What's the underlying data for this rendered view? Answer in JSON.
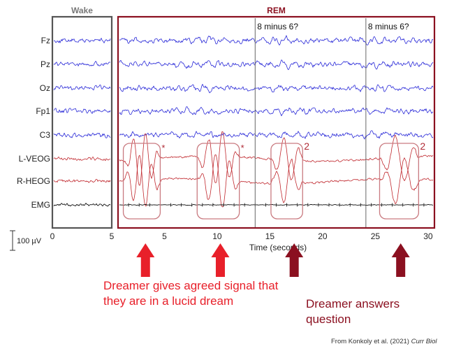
{
  "chart_data": {
    "type": "line",
    "panels": [
      {
        "label": "Wake",
        "xlim": [
          0,
          5
        ],
        "tick_labels": [
          "0",
          "5"
        ]
      },
      {
        "label": "REM",
        "xlim": [
          0,
          30
        ],
        "tick_labels": [
          "5",
          "10",
          "15",
          "20",
          "25",
          "30"
        ]
      }
    ],
    "xlabel": "Time (seconds)",
    "series": [
      {
        "name": "Fz",
        "color": "#2a2ad8"
      },
      {
        "name": "Pz",
        "color": "#2a2ad8"
      },
      {
        "name": "Oz",
        "color": "#2a2ad8"
      },
      {
        "name": "Fp1",
        "color": "#2a2ad8"
      },
      {
        "name": "C3",
        "color": "#2a2ad8"
      },
      {
        "name": "L-VEOG",
        "color": "#c0282e"
      },
      {
        "name": "R-HEOG",
        "color": "#c0282e"
      },
      {
        "name": "EMG",
        "color": "#111111"
      }
    ],
    "scale_bar_label": "100 µV",
    "question_events": [
      {
        "x": 13,
        "label": "8 minus 6?"
      },
      {
        "x": 23.5,
        "label": "8 minus 6?"
      }
    ],
    "signal_windows": [
      {
        "x0": 0.5,
        "x1": 4.0,
        "marker": "*",
        "kind": "lucid"
      },
      {
        "x0": 7.5,
        "x1": 11.5,
        "marker": "*",
        "kind": "lucid"
      },
      {
        "x0": 14.5,
        "x1": 17.5,
        "marker": "2",
        "kind": "answer"
      },
      {
        "x0": 24.8,
        "x1": 28.5,
        "marker": "2",
        "kind": "answer"
      }
    ],
    "arrows": [
      {
        "x": 2.6,
        "kind": "lucid"
      },
      {
        "x": 9.7,
        "kind": "lucid"
      },
      {
        "x": 16.7,
        "kind": "answer"
      },
      {
        "x": 26.8,
        "kind": "answer"
      }
    ],
    "notes": {
      "lucid": "Dreamer gives agreed signal that they are in a lucid dream",
      "answer": "Dreamer answers question"
    },
    "colors": {
      "eeg": "#2a2ad8",
      "eog": "#c0282e",
      "emg": "#111111",
      "rem_box": "#8b1020",
      "wake_box": "#555555",
      "lucid_arrow": "#e8202a",
      "answer_arrow": "#8b1020"
    }
  },
  "citation": {
    "prefix": "From Konkoly et al. (2021) ",
    "journal": "Curr Biol"
  }
}
